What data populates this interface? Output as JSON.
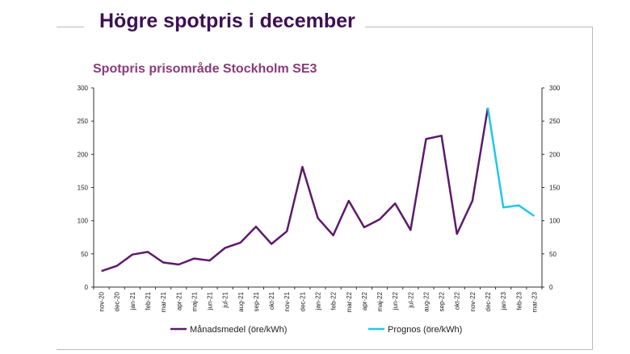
{
  "slide": {
    "title": "Högre spotpris i december"
  },
  "chart_data": {
    "type": "line",
    "title": "Spotpris prisområde Stockholm SE3",
    "categories": [
      "nov-20",
      "dec-20",
      "jan-21",
      "feb-21",
      "mar-21",
      "apr-21",
      "maj-21",
      "jun-21",
      "jul-21",
      "aug-21",
      "sep-21",
      "okt-21",
      "nov-21",
      "dec-21",
      "jan-22",
      "feb-22",
      "mar-22",
      "apr-22",
      "maj-22",
      "jun-22",
      "jul-22",
      "aug-22",
      "sep-22",
      "okt-22",
      "nov-22",
      "dec-22",
      "jan-23",
      "feb-23",
      "mar-23"
    ],
    "series": [
      {
        "name": "Månadsmedel (öre/kWh)",
        "color": "#5c1a6b",
        "values": [
          24,
          32,
          49,
          53,
          37,
          34,
          43,
          40,
          59,
          67,
          91,
          65,
          84,
          181,
          104,
          78,
          130,
          90,
          102,
          126,
          86,
          223,
          228,
          80,
          130,
          270,
          null,
          null,
          null
        ]
      },
      {
        "name": "Prognos (öre/kWh)",
        "color": "#1ec8e8",
        "values": [
          null,
          null,
          null,
          null,
          null,
          null,
          null,
          null,
          null,
          null,
          null,
          null,
          null,
          null,
          null,
          null,
          null,
          null,
          null,
          null,
          null,
          null,
          null,
          null,
          null,
          270,
          120,
          123,
          107
        ]
      }
    ],
    "ylim": [
      0,
      300
    ],
    "yticks": [
      0,
      50,
      100,
      150,
      200,
      250,
      300
    ],
    "ylabel": "",
    "xlabel": "",
    "grid": false,
    "legend": "bottom"
  }
}
